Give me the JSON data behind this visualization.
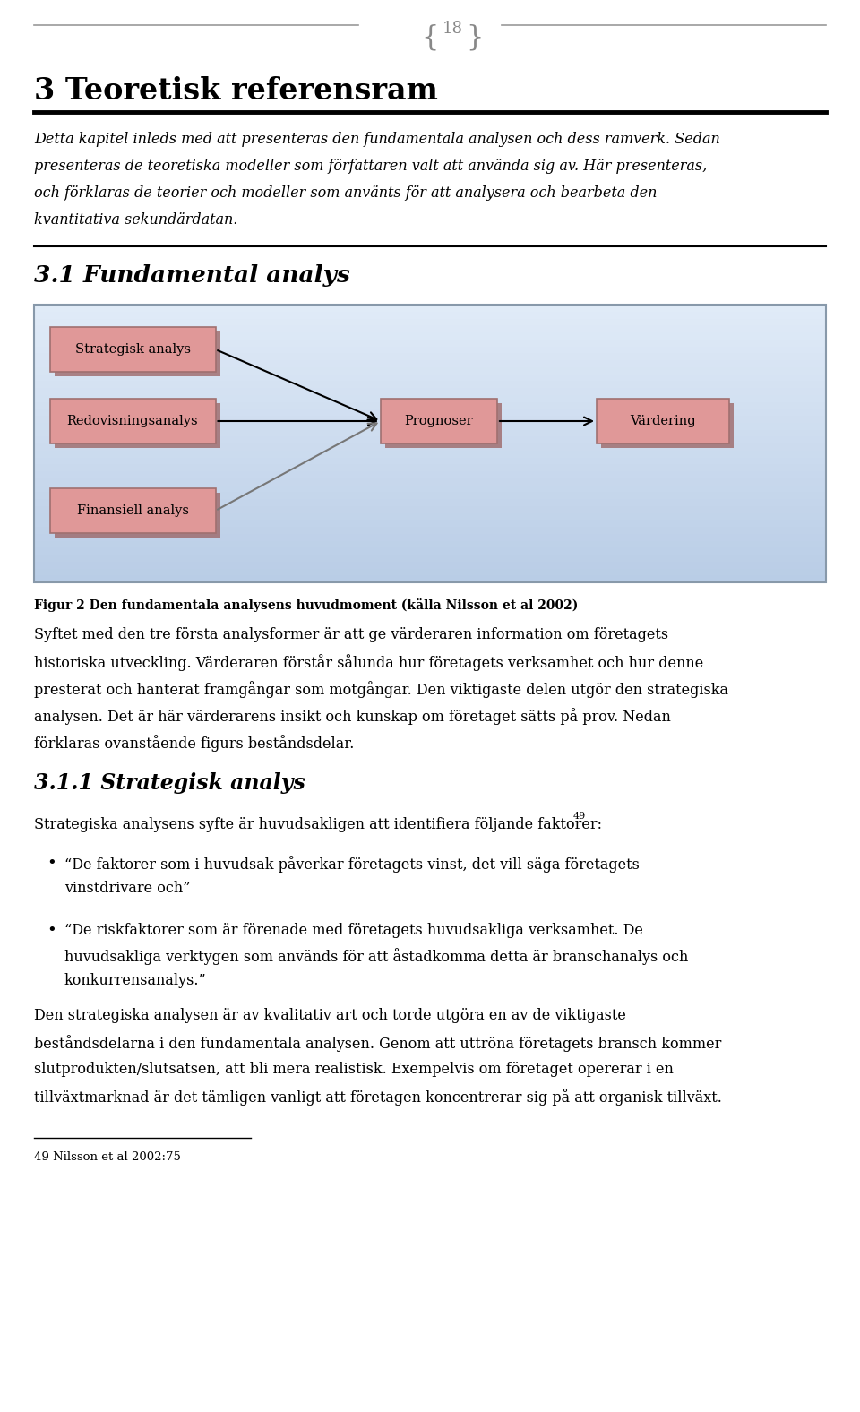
{
  "page_number": "18",
  "chapter_title": "3 Teoretisk referensram",
  "intro_lines": [
    "Detta kapitel inleds med att presenteras den fundamentala analysen och dess ramverk. Sedan",
    "presenteras de teoretiska modeller som författaren valt att använda sig av. Här presenteras,",
    "och förklaras de teorier och modeller som använts för att analysera och bearbeta den",
    "kvantitativa sekundärdatan."
  ],
  "section_title": "3.1 Fundamental analys",
  "figure_caption": "Figur 2 Den fundamentala analysens huvudmoment (källa Nilsson et al 2002)",
  "body1_lines": [
    "Syftet med den tre första analysformer är att ge värderaren information om företagets",
    "historiska utveckling. Värderaren förstår sålunda hur företagets verksamhet och hur denne",
    "presterat och hanterat framgångar som motgångar. Den viktigaste delen utgör den strategiska",
    "analysen. Det är här värderarens insikt och kunskap om företaget sätts på prov. Nedan",
    "förklaras ovanstående figurs beståndsdelar."
  ],
  "subsection_title": "3.1.1 Strategisk analys",
  "body2_line": "Strategiska analysens syfte är huvudsakligen att identifiera följande faktorer:",
  "bullet1_lines": [
    "“De faktorer som i huvudsak påverkar företagets vinst, det vill säga företagets",
    "vinstdrivare och”"
  ],
  "bullet2_lines": [
    "“De riskfaktorer som är förenade med företagets huvudsakliga verksamhet. De",
    "huvudsakliga verktygen som används för att åstadkomma detta är branschanalys och",
    "konkurrensanalys.”"
  ],
  "body3_lines": [
    "Den strategiska analysen är av kvalitativ art och torde utgöra en av de viktigaste",
    "beståndsdelarna i den fundamentala analysen. Genom att uttröna företagets bransch kommer",
    "slutprodukten/slutsatsen, att bli mera realistisk. Exempelvis om företaget opererar i en",
    "tillväxtmarknad är det tämligen vanligt att företagen koncentrerar sig på att organisk tillväxt."
  ],
  "footnote": "49 Nilsson et al 2002:75",
  "bg_color": "#ffffff",
  "text_color": "#000000",
  "diagram_bg_top": "#dce8f4",
  "diagram_bg_bot": "#b8cce4",
  "box_fill": "#d4a0a0",
  "box_shadow": "#b07070",
  "box_border": "#a07070",
  "diagram_border": "#8899aa",
  "header_line_color": "#999999",
  "header_text_color": "#888888"
}
